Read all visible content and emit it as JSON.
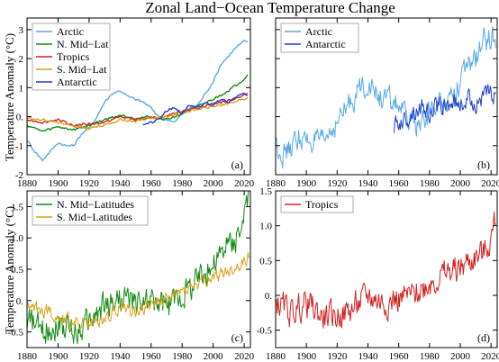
{
  "figure": {
    "title": "Zonal Land−Ocean Temperature Change",
    "ylabel": "Temperature Anomaly (°C)"
  },
  "colors": {
    "arctic": "#5aa9e6",
    "n_mid_lat": "#138a13",
    "tropics": "#d42020",
    "s_mid_lat": "#d9a21c",
    "antarctic": "#1f3fd1"
  },
  "chart_data": [
    {
      "panel": "(a)",
      "type": "line",
      "xlim": [
        1880,
        2024
      ],
      "ylim": [
        -2,
        3.4
      ],
      "xticks": [
        1880,
        1900,
        1920,
        1940,
        1960,
        1980,
        2000,
        2020
      ],
      "yticks": [
        -2,
        -1,
        0,
        1,
        2,
        3
      ],
      "legend_position": "top-left",
      "smoothed": true,
      "series": [
        {
          "name": "Arctic",
          "color_key": "arctic",
          "x": [
            1880,
            1885,
            1890,
            1895,
            1900,
            1905,
            1910,
            1915,
            1920,
            1925,
            1930,
            1935,
            1940,
            1945,
            1950,
            1955,
            1960,
            1965,
            1970,
            1975,
            1980,
            1985,
            1990,
            1995,
            2000,
            2005,
            2010,
            2015,
            2020,
            2022
          ],
          "y": [
            -0.8,
            -1.2,
            -1.5,
            -1.2,
            -0.9,
            -1.0,
            -1.0,
            -0.6,
            -0.4,
            0.0,
            0.5,
            0.8,
            0.9,
            0.7,
            0.6,
            0.5,
            0.3,
            0.0,
            -0.1,
            -0.2,
            0.1,
            0.3,
            0.4,
            0.8,
            1.2,
            1.8,
            2.1,
            2.4,
            2.6,
            2.6
          ]
        },
        {
          "name": "N. Mid−Lat",
          "color_key": "n_mid_lat",
          "x": [
            1880,
            1890,
            1900,
            1910,
            1920,
            1930,
            1940,
            1950,
            1960,
            1970,
            1980,
            1990,
            2000,
            2010,
            2020,
            2022
          ],
          "y": [
            -0.3,
            -0.5,
            -0.35,
            -0.45,
            -0.3,
            -0.1,
            0.05,
            -0.05,
            0.0,
            -0.1,
            0.1,
            0.35,
            0.6,
            0.9,
            1.3,
            1.45
          ]
        },
        {
          "name": "Tropics",
          "color_key": "tropics",
          "x": [
            1880,
            1890,
            1900,
            1910,
            1920,
            1930,
            1940,
            1950,
            1960,
            1970,
            1980,
            1990,
            2000,
            2010,
            2020,
            2022
          ],
          "y": [
            -0.1,
            -0.2,
            -0.1,
            -0.3,
            -0.25,
            -0.2,
            0.0,
            -0.1,
            -0.05,
            0.0,
            0.2,
            0.3,
            0.45,
            0.55,
            0.75,
            0.8
          ]
        },
        {
          "name": "S. Mid−Lat",
          "color_key": "s_mid_lat",
          "x": [
            1880,
            1890,
            1900,
            1910,
            1920,
            1930,
            1940,
            1950,
            1960,
            1970,
            1980,
            1990,
            2000,
            2010,
            2020,
            2022
          ],
          "y": [
            -0.05,
            -0.1,
            -0.2,
            -0.35,
            -0.4,
            -0.3,
            -0.1,
            -0.15,
            -0.05,
            0.0,
            0.15,
            0.25,
            0.35,
            0.45,
            0.6,
            0.65
          ]
        },
        {
          "name": "Antarctic",
          "color_key": "antarctic",
          "x": [
            1955,
            1960,
            1965,
            1970,
            1975,
            1980,
            1985,
            1990,
            1995,
            2000,
            2005,
            2010,
            2015,
            2020,
            2022
          ],
          "y": [
            -0.3,
            -0.2,
            -0.1,
            0.2,
            0.3,
            0.1,
            0.4,
            0.3,
            0.5,
            0.4,
            0.6,
            0.5,
            0.7,
            0.8,
            0.7
          ]
        }
      ]
    },
    {
      "panel": "(b)",
      "type": "line",
      "xlim": [
        1880,
        2024
      ],
      "ylim": [
        -2,
        3.4
      ],
      "xticks": [
        1880,
        1900,
        1920,
        1940,
        1960,
        1980,
        2000,
        2020
      ],
      "legend_position": "top-left",
      "series": [
        {
          "name": "Arctic",
          "color_key": "arctic",
          "x": [
            1880,
            1885,
            1890,
            1895,
            1900,
            1905,
            1910,
            1915,
            1920,
            1925,
            1930,
            1935,
            1940,
            1945,
            1950,
            1955,
            1960,
            1965,
            1970,
            1975,
            1980,
            1985,
            1990,
            1995,
            2000,
            2005,
            2010,
            2015,
            2020,
            2023
          ],
          "y": [
            -0.9,
            -1.3,
            -1.1,
            -0.7,
            -0.9,
            -0.8,
            -1.0,
            -0.5,
            -0.2,
            0.2,
            0.6,
            1.0,
            1.2,
            0.8,
            0.6,
            0.5,
            0.4,
            -0.1,
            -0.2,
            -0.3,
            0.2,
            0.4,
            0.6,
            0.9,
            1.2,
            1.7,
            2.0,
            2.5,
            2.8,
            2.6
          ],
          "noise": 0.45
        },
        {
          "name": "Antarctic",
          "color_key": "antarctic",
          "x": [
            1957,
            1960,
            1965,
            1970,
            1975,
            1980,
            1985,
            1990,
            1995,
            2000,
            2005,
            2010,
            2015,
            2020,
            2023
          ],
          "y": [
            -0.3,
            -0.2,
            -0.1,
            0.2,
            0.3,
            0.1,
            0.4,
            0.3,
            0.5,
            0.4,
            0.6,
            0.5,
            0.7,
            0.8,
            0.7
          ],
          "noise": 0.35
        }
      ]
    },
    {
      "panel": "(c)",
      "type": "line",
      "xlim": [
        1880,
        2024
      ],
      "ylim": [
        -0.75,
        1.75
      ],
      "xticks": [
        1880,
        1900,
        1920,
        1940,
        1960,
        1980,
        2000,
        2020
      ],
      "yticks": [
        -0.5,
        0,
        0.5,
        1,
        1.5
      ],
      "legend_position": "top-left",
      "series": [
        {
          "name": "N. Mid−Latitudes",
          "color_key": "n_mid_lat",
          "x": [
            1880,
            1890,
            1900,
            1910,
            1920,
            1930,
            1940,
            1950,
            1960,
            1970,
            1980,
            1990,
            2000,
            2010,
            2015,
            2020,
            2023
          ],
          "y": [
            -0.3,
            -0.5,
            -0.35,
            -0.5,
            -0.35,
            -0.1,
            0.05,
            -0.05,
            0.0,
            -0.1,
            0.1,
            0.35,
            0.6,
            0.9,
            1.0,
            1.3,
            1.6
          ],
          "noise": 0.25
        },
        {
          "name": "S. Mid−Latitudes",
          "color_key": "s_mid_lat",
          "x": [
            1880,
            1890,
            1900,
            1910,
            1920,
            1930,
            1940,
            1950,
            1960,
            1970,
            1980,
            1990,
            2000,
            2010,
            2020,
            2023
          ],
          "y": [
            -0.1,
            -0.15,
            -0.25,
            -0.35,
            -0.4,
            -0.3,
            -0.1,
            -0.15,
            -0.05,
            0.0,
            0.15,
            0.25,
            0.35,
            0.45,
            0.6,
            0.72
          ],
          "noise": 0.12
        }
      ]
    },
    {
      "panel": "(d)",
      "type": "line",
      "xlim": [
        1880,
        2024
      ],
      "ylim": [
        -0.75,
        1.5
      ],
      "xticks": [
        1880,
        1900,
        1920,
        1940,
        1960,
        1980,
        2000,
        2020
      ],
      "yticks": [
        -0.5,
        0,
        0.5,
        1,
        1.5
      ],
      "legend_position": "top-left",
      "series": [
        {
          "name": "Tropics",
          "color_key": "tropics",
          "x": [
            1880,
            1890,
            1900,
            1910,
            1920,
            1930,
            1940,
            1950,
            1960,
            1970,
            1980,
            1990,
            2000,
            2010,
            2015,
            2020,
            2023
          ],
          "y": [
            -0.1,
            -0.25,
            -0.1,
            -0.3,
            -0.3,
            -0.2,
            0.0,
            -0.1,
            -0.05,
            0.0,
            0.2,
            0.3,
            0.4,
            0.55,
            0.6,
            0.8,
            1.1
          ],
          "noise": 0.22
        }
      ]
    }
  ]
}
